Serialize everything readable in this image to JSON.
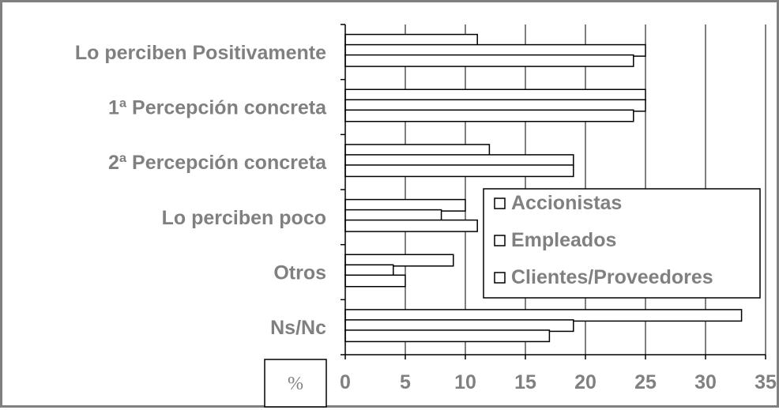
{
  "chart_data": {
    "type": "bar",
    "orientation": "horizontal",
    "title": "",
    "xlabel": "",
    "ylabel": "",
    "unit_label": "%",
    "categories": [
      "Lo perciben Positivamente",
      "1ª Percepción concreta",
      "2ª Percepción concreta",
      "Lo perciben poco",
      "Otros",
      "Ns/Nc"
    ],
    "series": [
      {
        "name": "Accionistas",
        "values": [
          11,
          25,
          12,
          10,
          9,
          33
        ]
      },
      {
        "name": "Empleados",
        "values": [
          25,
          25,
          19,
          8,
          4,
          19
        ]
      },
      {
        "name": "Clientes/Proveedores",
        "values": [
          24,
          24,
          19,
          11,
          5,
          17
        ]
      }
    ],
    "xlim": [
      0,
      35
    ],
    "xticks": [
      "0",
      "5",
      "10",
      "15",
      "20",
      "25",
      "30",
      "35"
    ],
    "grid": true,
    "legend_position": "lower-right",
    "colors": {
      "bar_fill": "#ffffff",
      "bar_stroke": "#000000",
      "text": "#808080",
      "frame": "#808080",
      "grid": "#000000"
    }
  }
}
